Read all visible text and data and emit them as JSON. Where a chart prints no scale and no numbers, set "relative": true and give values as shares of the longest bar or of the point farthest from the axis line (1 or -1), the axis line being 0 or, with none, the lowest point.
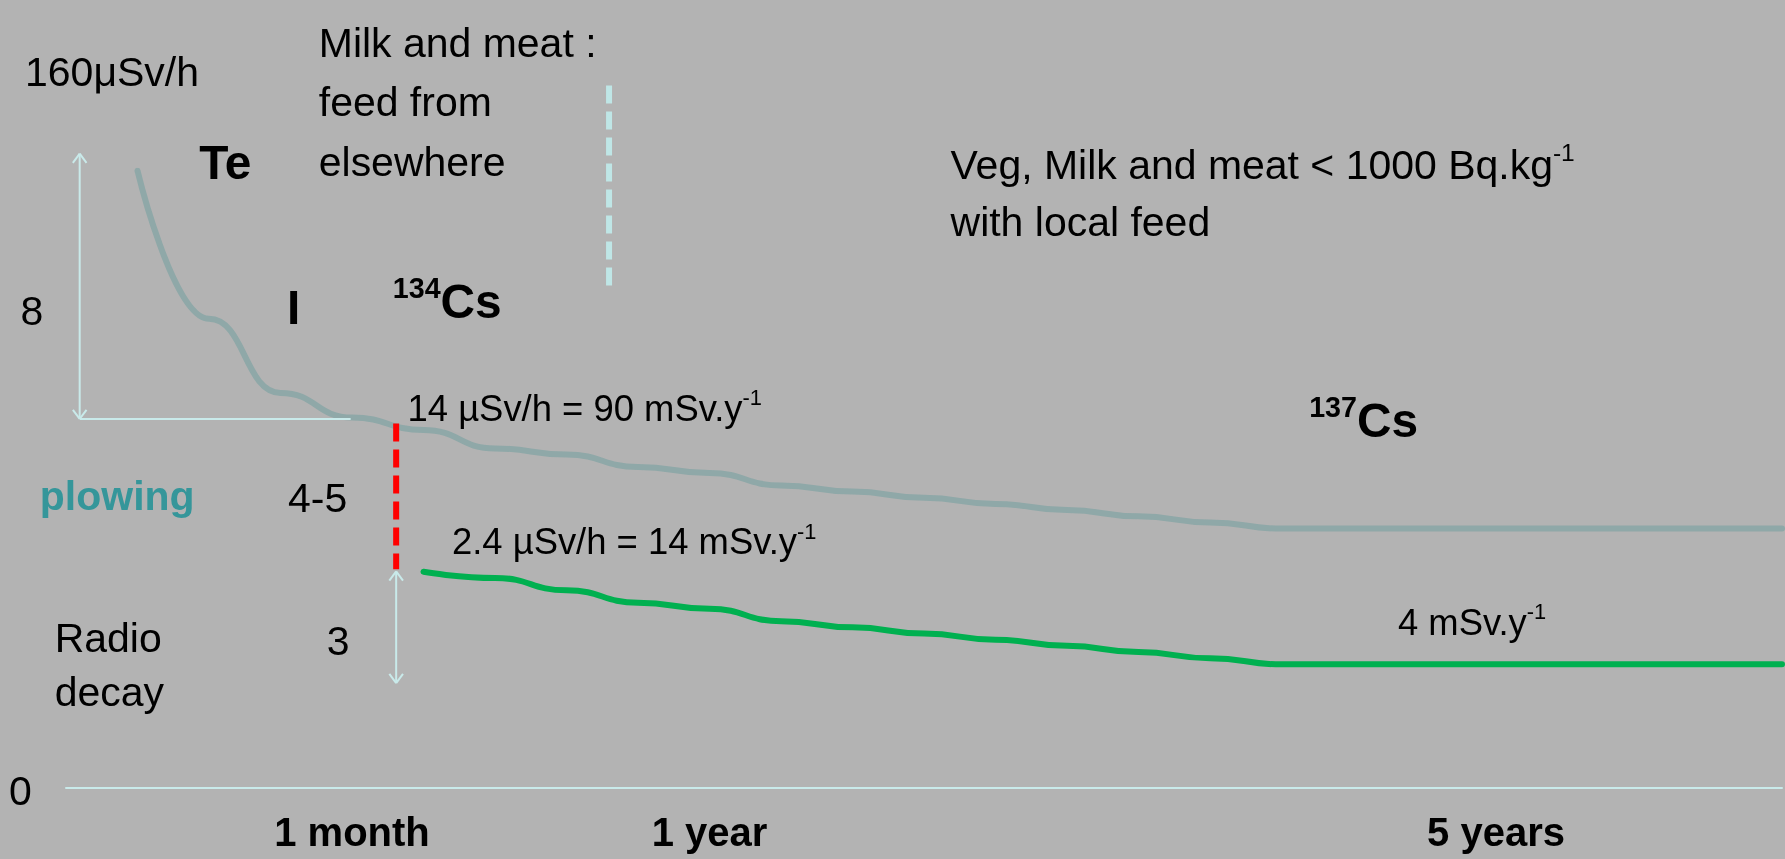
{
  "chart_data": {
    "type": "line",
    "relative": true,
    "grid": false,
    "marker": "none",
    "line_style": "solid",
    "categories": [
      null,
      null,
      null,
      null,
      "1 month",
      null,
      null,
      null,
      null,
      "1 year",
      null,
      null,
      null,
      null,
      null,
      null,
      null,
      null,
      null,
      null,
      "5 years",
      null,
      null,
      null,
      null
    ],
    "series": [
      {
        "color": "#8fa8a8",
        "values": [
          null,
          1,
          0.76,
          0.64,
          0.6,
          0.58,
          0.55,
          0.54,
          0.52,
          0.51,
          0.49,
          0.48,
          0.47,
          0.46,
          0.45,
          0.44,
          0.43,
          0.42,
          0.42,
          0.42,
          0.42,
          0.42,
          0.42,
          0.42,
          0.42
        ]
      },
      {
        "color": "#00b050",
        "values": [
          null,
          null,
          null,
          null,
          null,
          0.35,
          0.34,
          0.32,
          0.3,
          0.29,
          0.27,
          0.26,
          0.25,
          0.24,
          0.23,
          0.22,
          0.21,
          0.2,
          0.2,
          0.2,
          0.2,
          0.2,
          0.2,
          0.2,
          0.2
        ]
      }
    ],
    "annotations": [
      "160μSv/h",
      "Te",
      "Milk and meat :\nfeed from\nelsewhere",
      "Veg, Milk and meat < 1000 Bq.kg$^{-1}$\nwith local feed",
      "8",
      "I",
      "$^{134}$Cs",
      "14 µSv/h = 90 mSv.y$^{-1}$",
      "$^{137}$Cs",
      "plowing",
      "4-5",
      "2.4 µSv/h = 14 mSv.y$^{-1}$",
      "4 mSv.y$^{-1}$",
      "3",
      "Radio\ndecay",
      "0"
    ]
  }
}
